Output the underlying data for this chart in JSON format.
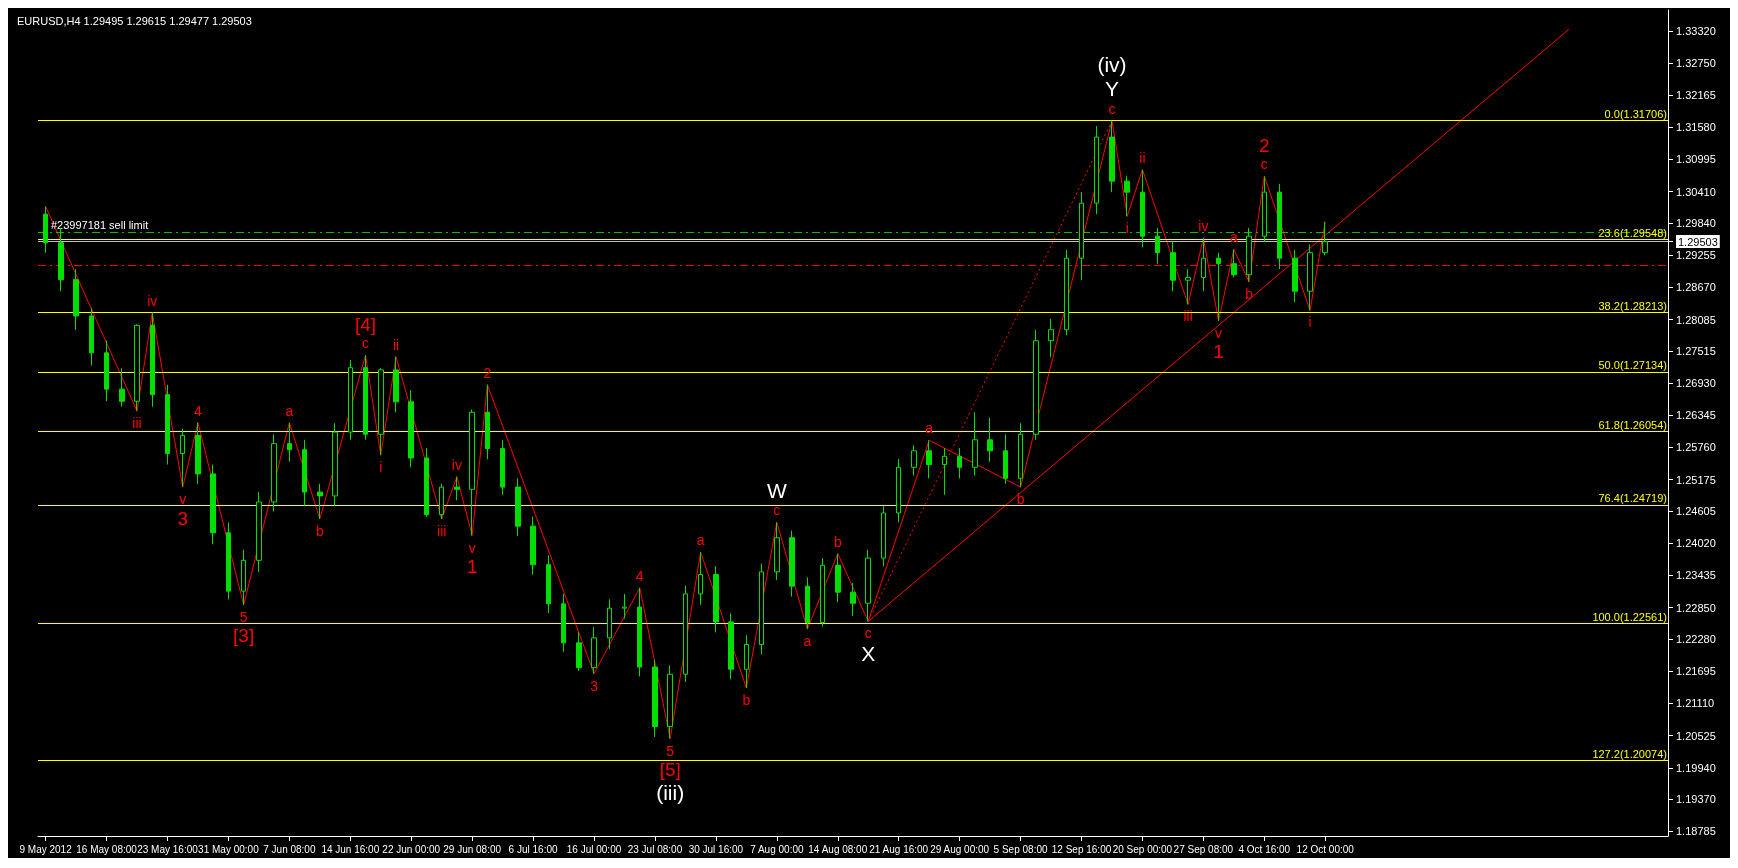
{
  "chart_data": {
    "type": "candlestick",
    "title": "EURUSD,H4 1.29495 1.29615 1.29477 1.29503",
    "categories": [
      "9 May 2012",
      null,
      null,
      null,
      "16 May 08:00",
      null,
      null,
      null,
      "23 May 16:00",
      null,
      null,
      null,
      "31 May 00:00",
      null,
      null,
      null,
      "7 Jun 08:00",
      null,
      null,
      null,
      "14 Jun 16:00",
      null,
      null,
      null,
      "22 Jun 00:00",
      null,
      null,
      null,
      "29 Jun 08:00",
      null,
      null,
      null,
      "6 Jul 16:00",
      null,
      null,
      null,
      "16 Jul 00:00",
      null,
      null,
      null,
      "23 Jul 08:00",
      null,
      null,
      null,
      "30 Jul 16:00",
      null,
      null,
      null,
      "7 Aug 00:00",
      null,
      null,
      null,
      "14 Aug 08:00",
      null,
      null,
      null,
      "21 Aug 16:00",
      null,
      null,
      null,
      "29 Aug 00:00",
      null,
      null,
      null,
      "5 Sep 08:00",
      null,
      null,
      null,
      "12 Sep 16:00",
      null,
      null,
      null,
      "20 Sep 00:00",
      null,
      null,
      null,
      "27 Sep 08:00",
      null,
      null,
      null,
      "4 Oct 16:00",
      null,
      null,
      null,
      "12 Oct 00:00",
      null,
      null,
      null,
      null,
      null,
      null,
      null,
      null,
      null,
      null,
      null,
      null,
      null,
      null,
      null,
      null,
      null,
      null,
      null,
      null,
      null,
      null
    ],
    "ylim": [
      1.187,
      1.3371
    ],
    "yticks": [
      {
        "value": 1.3332,
        "label": "1.33320"
      },
      {
        "value": 1.3275,
        "label": "1.32750"
      },
      {
        "value": 1.32165,
        "label": "1.32165"
      },
      {
        "value": 1.3158,
        "label": "1.31580"
      },
      {
        "value": 1.30995,
        "label": "1.30995"
      },
      {
        "value": 1.3041,
        "label": "1.30410"
      },
      {
        "value": 1.2984,
        "label": "1.29840"
      },
      {
        "value": 1.29503,
        "label": "1.29503"
      },
      {
        "value": 1.29255,
        "label": "1.29255"
      },
      {
        "value": 1.2867,
        "label": "1.28670"
      },
      {
        "value": 1.28085,
        "label": "1.28085"
      },
      {
        "value": 1.27515,
        "label": "1.27515"
      },
      {
        "value": 1.2693,
        "label": "1.26930"
      },
      {
        "value": 1.26345,
        "label": "1.26345"
      },
      {
        "value": 1.2576,
        "label": "1.25760"
      },
      {
        "value": 1.25175,
        "label": "1.25175"
      },
      {
        "value": 1.24605,
        "label": "1.24605"
      },
      {
        "value": 1.2402,
        "label": "1.24020"
      },
      {
        "value": 1.23435,
        "label": "1.23435"
      },
      {
        "value": 1.2285,
        "label": "1.22850"
      },
      {
        "value": 1.2228,
        "label": "1.22280"
      },
      {
        "value": 1.21695,
        "label": "1.21695"
      },
      {
        "value": 1.2111,
        "label": "1.21110"
      },
      {
        "value": 1.20525,
        "label": "1.20525"
      },
      {
        "value": 1.1994,
        "label": "1.19940"
      },
      {
        "value": 1.1937,
        "label": "1.19370"
      },
      {
        "value": 1.18785,
        "label": "1.18785"
      }
    ],
    "marker": "none",
    "series": [
      {
        "color": "#00e000",
        "ohlc": [
          [
            1.3,
            1.3014,
            1.293,
            1.2948
          ],
          [
            1.2948,
            1.2975,
            1.286,
            1.2881
          ],
          [
            1.2881,
            1.29,
            1.279,
            1.2815
          ],
          [
            1.2815,
            1.283,
            1.2725,
            1.2748
          ],
          [
            1.2748,
            1.277,
            1.266,
            1.2682
          ],
          [
            1.2682,
            1.272,
            1.265,
            1.266
          ],
          [
            1.266,
            1.28,
            1.2642,
            1.2798
          ],
          [
            1.2798,
            1.2821,
            1.265,
            1.2672
          ],
          [
            1.2672,
            1.269,
            1.2545,
            1.2565
          ],
          [
            1.2565,
            1.261,
            1.2504,
            1.2598
          ],
          [
            1.2598,
            1.2621,
            1.251,
            1.2528
          ],
          [
            1.2528,
            1.2545,
            1.24,
            1.2421
          ],
          [
            1.2421,
            1.244,
            1.23,
            1.2315
          ],
          [
            1.2315,
            1.239,
            1.229,
            1.2371
          ],
          [
            1.2371,
            1.2495,
            1.235,
            1.2477
          ],
          [
            1.2477,
            1.26,
            1.246,
            1.2583
          ],
          [
            1.2583,
            1.2621,
            1.255,
            1.2572
          ],
          [
            1.2572,
            1.259,
            1.247,
            1.2495
          ],
          [
            1.2495,
            1.251,
            1.2446,
            1.2488
          ],
          [
            1.2488,
            1.262,
            1.247,
            1.2604
          ],
          [
            1.2604,
            1.2735,
            1.259,
            1.2721
          ],
          [
            1.2721,
            1.2744,
            1.259,
            1.26
          ],
          [
            1.26,
            1.272,
            1.2562,
            1.2717
          ],
          [
            1.2717,
            1.2741,
            1.264,
            1.2659
          ],
          [
            1.2659,
            1.268,
            1.254,
            1.2557
          ],
          [
            1.2557,
            1.2575,
            1.245,
            1.2454
          ],
          [
            1.2454,
            1.251,
            1.2446,
            1.2504
          ],
          [
            1.2504,
            1.2523,
            1.248,
            1.25
          ],
          [
            1.25,
            1.2645,
            1.2416,
            1.264
          ],
          [
            1.264,
            1.269,
            1.2555,
            1.2574
          ],
          [
            1.2574,
            1.259,
            1.249,
            1.2504
          ],
          [
            1.2504,
            1.252,
            1.2415,
            1.2433
          ],
          [
            1.2433,
            1.245,
            1.2345,
            1.2363
          ],
          [
            1.2363,
            1.238,
            1.2275,
            1.2292
          ],
          [
            1.2292,
            1.231,
            1.2205,
            1.2221
          ],
          [
            1.2221,
            1.224,
            1.217,
            1.2176
          ],
          [
            1.2176,
            1.225,
            1.2165,
            1.223
          ],
          [
            1.223,
            1.23,
            1.221,
            1.2284
          ],
          [
            1.2284,
            1.231,
            1.2265,
            1.2286
          ],
          [
            1.2286,
            1.2321,
            1.216,
            1.2177
          ],
          [
            1.2177,
            1.219,
            1.205,
            1.2069
          ],
          [
            1.2069,
            1.218,
            1.2047,
            1.2164
          ],
          [
            1.2164,
            1.2325,
            1.215,
            1.231
          ],
          [
            1.231,
            1.2386,
            1.229,
            1.2345
          ],
          [
            1.2345,
            1.236,
            1.224,
            1.2259
          ],
          [
            1.2259,
            1.2275,
            1.2155,
            1.2173
          ],
          [
            1.2173,
            1.2235,
            1.2139,
            1.2218
          ],
          [
            1.2218,
            1.2365,
            1.22,
            1.235
          ],
          [
            1.235,
            1.244,
            1.2335,
            1.2412
          ],
          [
            1.2412,
            1.2425,
            1.2305,
            1.2324
          ],
          [
            1.2324,
            1.234,
            1.2246,
            1.2258
          ],
          [
            1.2258,
            1.2375,
            1.225,
            1.2362
          ],
          [
            1.2362,
            1.2383,
            1.2295,
            1.2313
          ],
          [
            1.2313,
            1.233,
            1.227,
            1.2293
          ],
          [
            1.2293,
            1.239,
            1.226,
            1.2375
          ],
          [
            1.2375,
            1.247,
            1.236,
            1.2457
          ],
          [
            1.2457,
            1.2555,
            1.244,
            1.254
          ],
          [
            1.254,
            1.258,
            1.2525,
            1.257
          ],
          [
            1.257,
            1.2589,
            1.252,
            1.2545
          ],
          [
            1.2545,
            1.2575,
            1.249,
            1.256
          ],
          [
            1.256,
            1.2575,
            1.252,
            1.254
          ],
          [
            1.254,
            1.264,
            1.2525,
            1.259
          ],
          [
            1.259,
            1.263,
            1.255,
            1.257
          ],
          [
            1.257,
            1.26,
            1.251,
            1.252
          ],
          [
            1.252,
            1.262,
            1.2504,
            1.26
          ],
          [
            1.26,
            1.279,
            1.259,
            1.277
          ],
          [
            1.277,
            1.281,
            1.274,
            1.279
          ],
          [
            1.279,
            1.2935,
            1.278,
            1.292
          ],
          [
            1.292,
            1.304,
            1.288,
            1.302
          ],
          [
            1.302,
            1.316,
            1.3,
            1.314
          ],
          [
            1.314,
            1.317,
            1.304,
            1.306
          ],
          [
            1.306,
            1.307,
            1.2996,
            1.304
          ],
          [
            1.304,
            1.3081,
            1.294,
            1.296
          ],
          [
            1.296,
            1.2975,
            1.291,
            1.293
          ],
          [
            1.293,
            1.295,
            1.286,
            1.288
          ],
          [
            1.288,
            1.29,
            1.2836,
            1.2885
          ],
          [
            1.2885,
            1.2957,
            1.286,
            1.292
          ],
          [
            1.292,
            1.293,
            1.2806,
            1.291
          ],
          [
            1.291,
            1.2936,
            1.2885,
            1.289
          ],
          [
            1.289,
            1.2975,
            1.2877,
            1.296
          ],
          [
            1.296,
            1.3069,
            1.295,
            1.304
          ],
          [
            1.304,
            1.3055,
            1.29,
            1.292
          ],
          [
            1.292,
            1.2935,
            1.284,
            1.286
          ],
          [
            1.286,
            1.2945,
            1.2825,
            1.293
          ],
          [
            1.293,
            1.2986,
            1.2925,
            1.295
          ],
          null,
          null,
          null,
          null,
          null,
          null,
          null,
          null,
          null,
          null,
          null,
          null,
          null,
          null,
          null,
          null,
          null,
          null,
          null,
          null,
          null,
          null
        ]
      },
      {
        "type": "line",
        "color": "#ff0000",
        "line_style": "solid",
        "values": [
          1.3014,
          null,
          null,
          null,
          null,
          null,
          1.2642,
          1.2821,
          null,
          1.2504,
          1.2621,
          null,
          null,
          1.229,
          null,
          null,
          1.2621,
          null,
          1.2446,
          null,
          null,
          1.2744,
          1.2562,
          1.2741,
          null,
          null,
          1.2446,
          1.2523,
          1.2416,
          1.269,
          null,
          null,
          null,
          null,
          null,
          null,
          1.2165,
          null,
          null,
          1.2321,
          null,
          1.2047,
          null,
          1.2386,
          null,
          null,
          1.2139,
          null,
          1.244,
          null,
          1.2246,
          null,
          1.2383,
          null,
          1.226,
          null,
          null,
          null,
          1.2589,
          null,
          null,
          null,
          null,
          null,
          1.2504,
          null,
          null,
          null,
          null,
          null,
          1.317,
          1.2996,
          1.3081,
          null,
          null,
          1.2836,
          1.2957,
          1.2806,
          1.2936,
          1.2877,
          1.3069,
          null,
          null,
          1.2825,
          1.2986,
          null,
          null,
          null,
          null,
          null,
          null,
          null,
          null,
          null,
          null,
          null,
          null,
          null,
          null,
          null,
          null,
          null,
          null,
          null,
          null,
          null,
          null
        ]
      },
      {
        "type": "line",
        "color": "#ff0000",
        "line_style": "dotted",
        "values": [
          null,
          null,
          null,
          null,
          null,
          null,
          null,
          null,
          null,
          null,
          null,
          null,
          null,
          null,
          null,
          null,
          null,
          null,
          null,
          null,
          null,
          null,
          null,
          null,
          null,
          null,
          null,
          null,
          null,
          null,
          null,
          null,
          null,
          null,
          null,
          null,
          null,
          null,
          null,
          null,
          null,
          null,
          null,
          null,
          null,
          null,
          null,
          null,
          null,
          null,
          null,
          null,
          null,
          null,
          1.226,
          null,
          null,
          null,
          null,
          null,
          null,
          null,
          null,
          null,
          null,
          null,
          null,
          null,
          null,
          null,
          1.317,
          null,
          null,
          null,
          null,
          null,
          null,
          null,
          null,
          null,
          null,
          null,
          null,
          null,
          null,
          null,
          null,
          null,
          null,
          null,
          null,
          null,
          null,
          null,
          null,
          null,
          null,
          null,
          null,
          null,
          null,
          null,
          null,
          null,
          null,
          null,
          null
        ],
        "value_labels": [
          null,
          null,
          null,
          null,
          null,
          null,
          null,
          null,
          null,
          null,
          null,
          null,
          null,
          null,
          null,
          null,
          null,
          null,
          null,
          null,
          null,
          null,
          null,
          null,
          null,
          null,
          null,
          null,
          null,
          null,
          null,
          null,
          null,
          null,
          null,
          null,
          null,
          null,
          null,
          null,
          null,
          null,
          null,
          null,
          null,
          null,
          null,
          null,
          null,
          null,
          null,
          null,
          null,
          null,
          "X",
          null,
          null,
          null,
          null,
          null,
          null,
          null,
          null,
          null,
          null,
          null,
          null,
          null,
          null,
          null,
          "(iv)\nY",
          null,
          null,
          null,
          null,
          null,
          null,
          null,
          null,
          null,
          null,
          null,
          null,
          null,
          null,
          null,
          null,
          null,
          null,
          null,
          null,
          null,
          null,
          null,
          null,
          null,
          null,
          null,
          null,
          null,
          null,
          null,
          null,
          null,
          null,
          null,
          null
        ]
      },
      {
        "type": "line",
        "color": "#ff0000",
        "line_style": "solid",
        "values": [
          null,
          null,
          null,
          null,
          null,
          null,
          null,
          null,
          null,
          null,
          null,
          null,
          null,
          null,
          null,
          null,
          null,
          null,
          null,
          null,
          null,
          null,
          null,
          null,
          null,
          null,
          null,
          null,
          null,
          null,
          null,
          null,
          null,
          null,
          null,
          null,
          null,
          null,
          null,
          null,
          null,
          null,
          null,
          null,
          null,
          null,
          null,
          null,
          null,
          null,
          null,
          null,
          null,
          null,
          1.226,
          null,
          null,
          null,
          null,
          null,
          null,
          null,
          null,
          null,
          null,
          null,
          null,
          null,
          null,
          null,
          null,
          null,
          null,
          null,
          null,
          null,
          null,
          null,
          null,
          null,
          null,
          null,
          null,
          null,
          null,
          null,
          null,
          null,
          null,
          null,
          null,
          null,
          null,
          null,
          null,
          null,
          null,
          null,
          null,
          null,
          1.3336,
          null,
          null,
          null,
          null,
          null,
          null
        ]
      }
    ],
    "ref_lines": [
      {
        "axis": "y",
        "value": 1.31706,
        "label": "0.0(1.31706)",
        "color": "#ffff00",
        "line_style": "solid"
      },
      {
        "axis": "y",
        "value": 1.29548,
        "label": "23.6(1.29548)",
        "color": "#ffff00",
        "line_style": "solid"
      },
      {
        "axis": "y",
        "value": 1.28213,
        "label": "38.2(1.28213)",
        "color": "#ffff00",
        "line_style": "solid"
      },
      {
        "axis": "y",
        "value": 1.27134,
        "label": "50.0(1.27134)",
        "color": "#ffff00",
        "line_style": "solid"
      },
      {
        "axis": "y",
        "value": 1.26054,
        "label": "61.8(1.26054)",
        "color": "#ffff00",
        "line_style": "solid"
      },
      {
        "axis": "y",
        "value": 1.24719,
        "label": "76.4(1.24719)",
        "color": "#ffff00",
        "line_style": "solid"
      },
      {
        "axis": "y",
        "value": 1.22561,
        "label": "100.0(1.22561)",
        "color": "#ffff00",
        "line_style": "solid"
      },
      {
        "axis": "y",
        "value": 1.20074,
        "label": "127.2(1.20074)",
        "color": "#ffff00",
        "line_style": "solid"
      },
      {
        "axis": "y",
        "value": 1.2968,
        "label": "#23997181 sell limit",
        "color": "#00c000",
        "line_style": "dashed"
      },
      {
        "axis": "y",
        "value": 1.29066,
        "color": "#ff0000",
        "line_style": "dashed"
      },
      {
        "axis": "y",
        "value": 1.29503,
        "color": "#c0c0c0",
        "line_style": "solid"
      }
    ],
    "annotations": [
      {
        "text": "iii",
        "y": 1.2642
      },
      {
        "text": "iv",
        "y": 1.2821
      },
      {
        "text": "v\n3",
        "y": 1.2504
      },
      {
        "text": "4",
        "y": 1.2621
      },
      {
        "text": "5\n[3]",
        "y": 1.229
      },
      {
        "text": "a",
        "y": 1.2621
      },
      {
        "text": "b",
        "y": 1.2446
      },
      {
        "text": "[4]\nc",
        "y": 1.2744
      },
      {
        "text": "i",
        "y": 1.2562
      },
      {
        "text": "ii",
        "y": 1.2741
      },
      {
        "text": "iii",
        "y": 1.2446
      },
      {
        "text": "iv",
        "y": 1.2523
      },
      {
        "text": "v\n1",
        "y": 1.2416
      },
      {
        "text": "2",
        "y": 1.269
      },
      {
        "text": "3",
        "y": 1.2165
      },
      {
        "text": "4",
        "y": 1.2321
      },
      {
        "text": "5\n[5]\n(iii)",
        "y": 1.2047
      },
      {
        "text": "a",
        "y": 1.2386
      },
      {
        "text": "b",
        "y": 1.2139
      },
      {
        "text": "c",
        "y": 1.244
      },
      {
        "text": "a",
        "y": 1.2246
      },
      {
        "text": "b",
        "y": 1.2383
      },
      {
        "text": "c",
        "y": 1.226
      },
      {
        "text": "a",
        "y": 1.2589
      },
      {
        "text": "b",
        "y": 1.2504
      },
      {
        "text": "c",
        "y": 1.317
      },
      {
        "text": "i",
        "y": 1.2996
      },
      {
        "text": "ii",
        "y": 1.3081
      },
      {
        "text": "iii",
        "y": 1.2836
      },
      {
        "text": "iv",
        "y": 1.2957
      },
      {
        "text": "v\n1",
        "y": 1.2806
      },
      {
        "text": "a",
        "y": 1.2936
      },
      {
        "text": "b",
        "y": 1.2877
      },
      {
        "text": "2\nc",
        "y": 1.3069
      },
      {
        "text": "i",
        "y": 1.2825
      },
      {
        "text": "W",
        "x": "7 Aug 00:00",
        "y": 1.244
      }
    ]
  }
}
